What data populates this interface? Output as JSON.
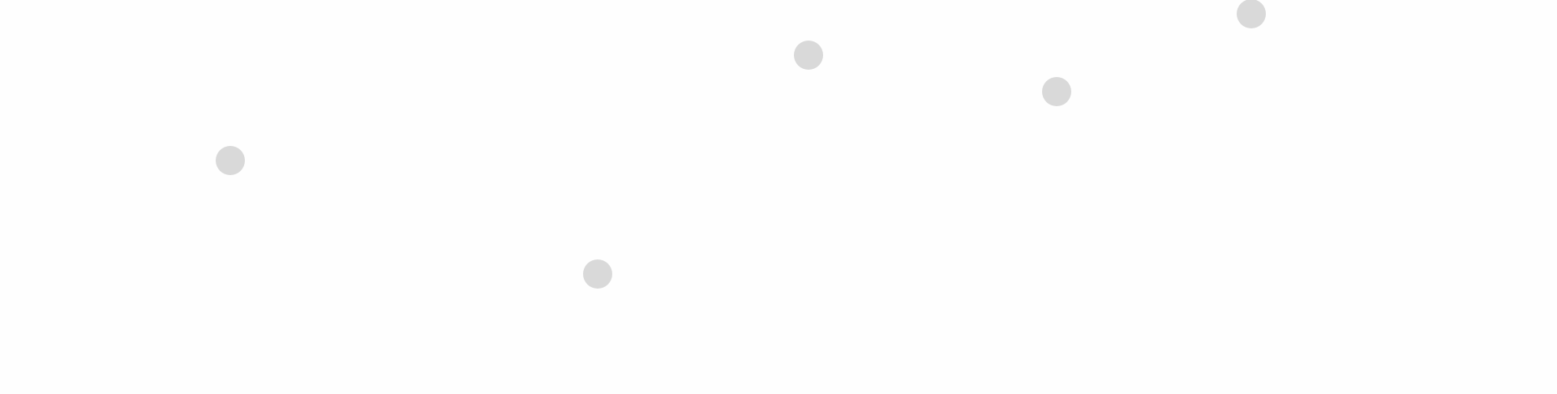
{
  "colors": {
    "background": "#fefefe",
    "dot": "#d9d9d9"
  },
  "dots": [
    {
      "shape": "circle"
    },
    {
      "shape": "circle"
    },
    {
      "shape": "circle"
    },
    {
      "shape": "circle"
    },
    {
      "shape": "circle"
    }
  ]
}
